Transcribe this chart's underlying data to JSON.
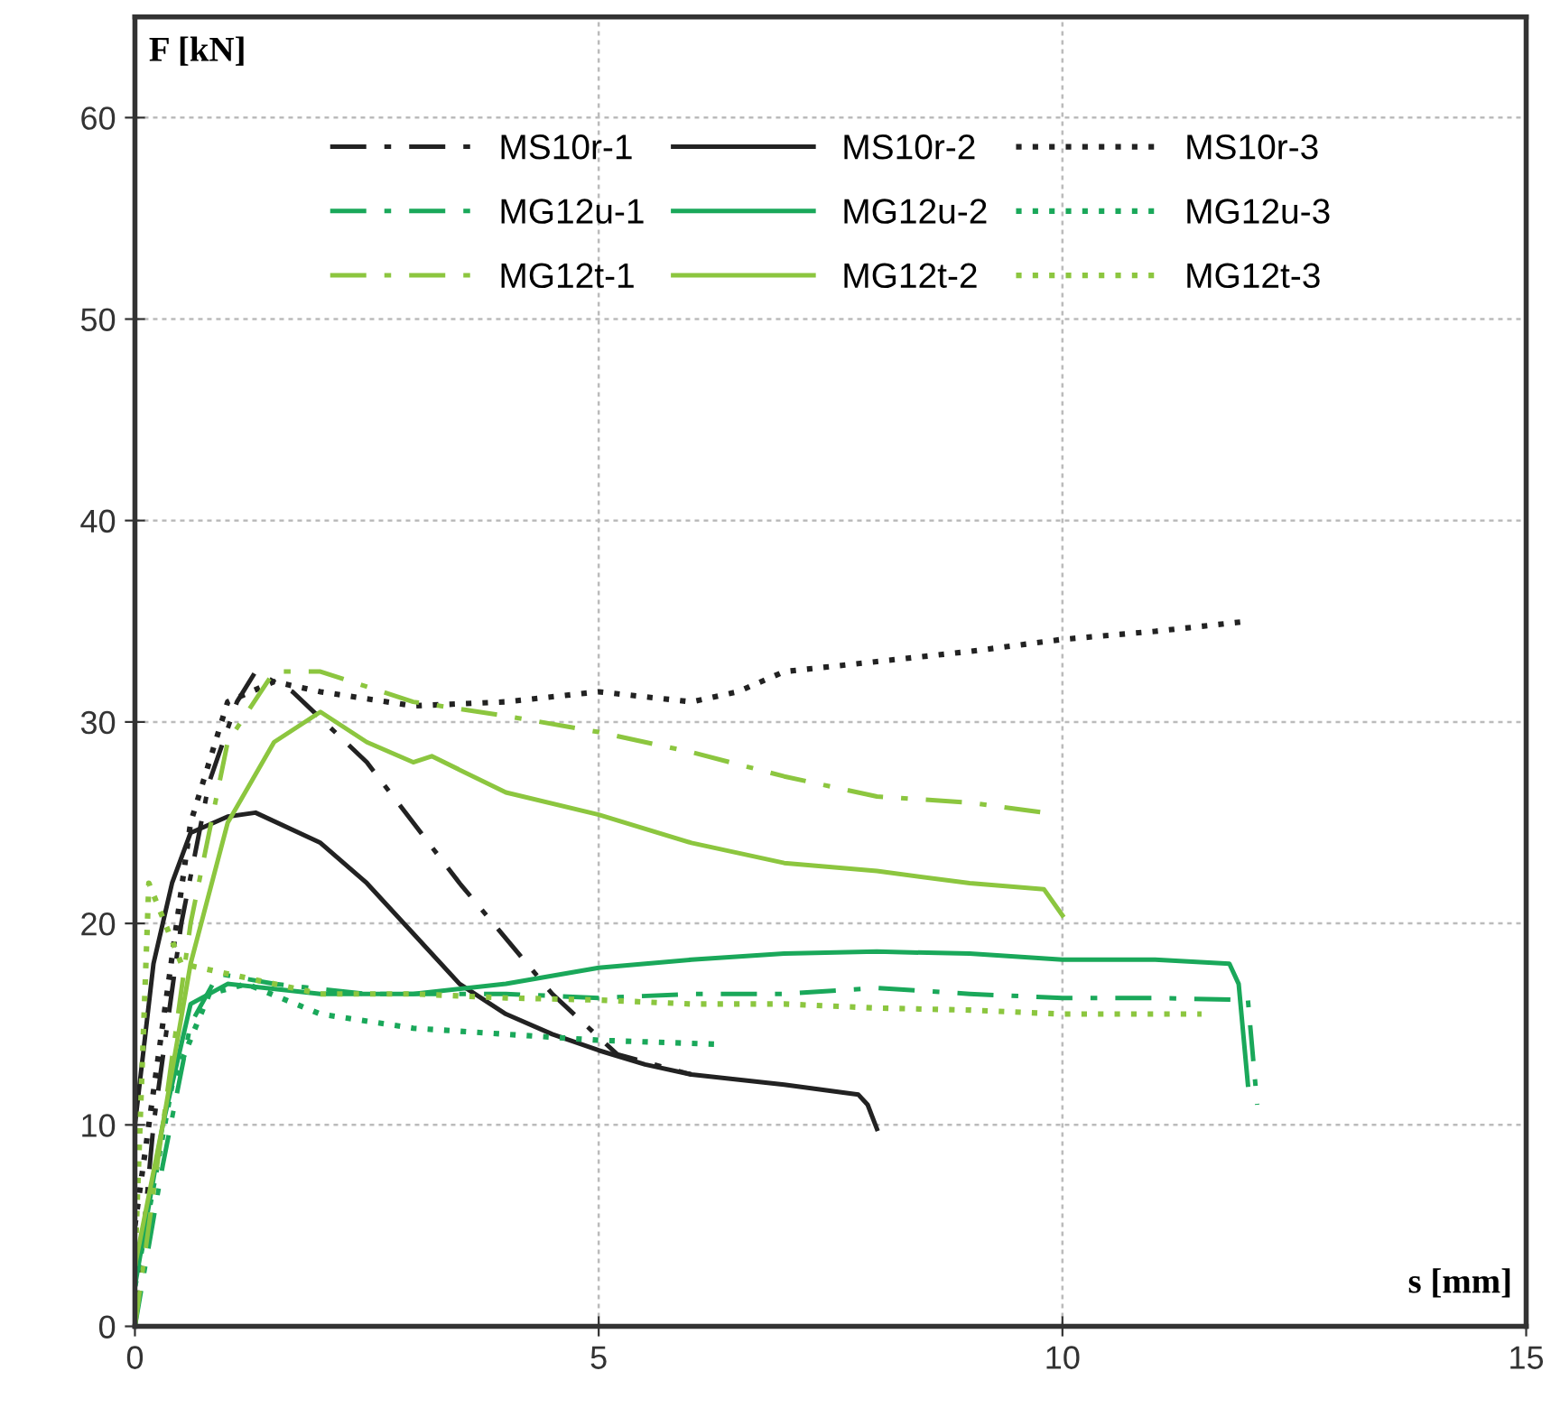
{
  "chart_data": {
    "type": "line",
    "xlabel": "s [mm]",
    "ylabel": "F [kN]",
    "xlim": [
      0,
      15
    ],
    "ylim": [
      0,
      65
    ],
    "xticks": [
      0,
      5,
      10,
      15
    ],
    "yticks": [
      0,
      10,
      20,
      30,
      40,
      50,
      60
    ],
    "grid": true,
    "legend": "top",
    "marker": "none",
    "series": [
      {
        "name": "MS10r-1",
        "color": "#222222",
        "line_style": "dashdot",
        "x": [
          0,
          0.2,
          0.5,
          0.8,
          1.1,
          1.3,
          1.7,
          2.5,
          3.5,
          4.5,
          5.2,
          6.0
        ],
        "values": [
          0,
          10,
          20,
          27,
          31,
          32.5,
          31.5,
          28,
          22,
          16.5,
          13.5,
          12.5
        ]
      },
      {
        "name": "MS10r-2",
        "color": "#222222",
        "line_style": "solid",
        "x": [
          0,
          0.2,
          0.4,
          0.6,
          1.0,
          1.3,
          2,
          2.5,
          3,
          3.5,
          4,
          4.5,
          5,
          5.5,
          6,
          7,
          7.8,
          7.9,
          8.0
        ],
        "values": [
          10,
          18,
          22,
          24.5,
          25.3,
          25.5,
          24,
          22,
          19.5,
          17,
          15.5,
          14.5,
          13.7,
          13,
          12.5,
          12,
          11.5,
          11,
          9.8
        ]
      },
      {
        "name": "MS10r-3",
        "color": "#222222",
        "line_style": "dotted",
        "x": [
          0,
          0.3,
          0.6,
          1,
          1.5,
          2,
          3,
          4,
          5,
          6,
          6.5,
          7,
          8,
          9,
          10,
          11,
          12
        ],
        "values": [
          5,
          15,
          25,
          31,
          32,
          31.5,
          30.8,
          31,
          31.5,
          31,
          31.5,
          32.5,
          33,
          33.5,
          34.1,
          34.5,
          35
        ]
      },
      {
        "name": "MG12u-1",
        "color": "#1aa85a",
        "line_style": "dashdot",
        "x": [
          0,
          0.3,
          0.6,
          0.9,
          1.5,
          2.5,
          4,
          5,
          6,
          7,
          8,
          9,
          10,
          11,
          12,
          12.1
        ],
        "values": [
          0,
          8,
          15,
          17.5,
          17,
          16.5,
          16.5,
          16.3,
          16.5,
          16.5,
          16.8,
          16.5,
          16.3,
          16.3,
          16.2,
          11
        ]
      },
      {
        "name": "MG12u-2",
        "color": "#1aa85a",
        "line_style": "solid",
        "x": [
          0,
          0.3,
          0.6,
          1,
          2,
          3,
          4,
          5,
          6,
          7,
          8,
          9,
          10,
          11,
          11.8,
          11.9,
          12
        ],
        "values": [
          2,
          10,
          16,
          17,
          16.5,
          16.5,
          17,
          17.8,
          18.2,
          18.5,
          18.6,
          18.5,
          18.2,
          18.2,
          18,
          17,
          12
        ]
      },
      {
        "name": "MG12u-3",
        "color": "#1aa85a",
        "line_style": "dotted",
        "x": [
          0,
          0.4,
          0.8,
          1.2,
          2,
          3,
          4,
          5,
          6.3
        ],
        "values": [
          2,
          12,
          16.5,
          17,
          15.5,
          14.8,
          14.5,
          14.2,
          14
        ]
      },
      {
        "name": "MG12t-1",
        "color": "#8cc63f",
        "line_style": "dashdot",
        "x": [
          0,
          0.3,
          0.6,
          1,
          1.5,
          2,
          3,
          4,
          5,
          6,
          7,
          8,
          9,
          9.8
        ],
        "values": [
          0,
          10,
          20,
          29,
          32.5,
          32.5,
          31,
          30.3,
          29.5,
          28.5,
          27.3,
          26.3,
          26,
          25.5
        ]
      },
      {
        "name": "MG12t-2",
        "color": "#8cc63f",
        "line_style": "solid",
        "x": [
          0,
          0.3,
          0.6,
          1,
          1.5,
          2,
          2.5,
          3,
          3.2,
          4,
          5,
          6,
          7,
          8,
          9,
          9.8,
          10
        ],
        "values": [
          3,
          10,
          18,
          25,
          29,
          30.5,
          29,
          28,
          28.3,
          26.5,
          25.4,
          24,
          23,
          22.6,
          22,
          21.7,
          20.4
        ]
      },
      {
        "name": "MG12t-3",
        "color": "#8cc63f",
        "line_style": "dotted",
        "x": [
          0,
          0.15,
          0.5,
          1,
          2,
          3,
          4,
          5,
          6,
          7,
          8,
          9,
          10,
          11,
          11.5
        ],
        "values": [
          3,
          22,
          18,
          17.5,
          16.5,
          16.5,
          16.3,
          16.2,
          16,
          16,
          15.8,
          15.7,
          15.5,
          15.5,
          15.5
        ]
      }
    ]
  }
}
